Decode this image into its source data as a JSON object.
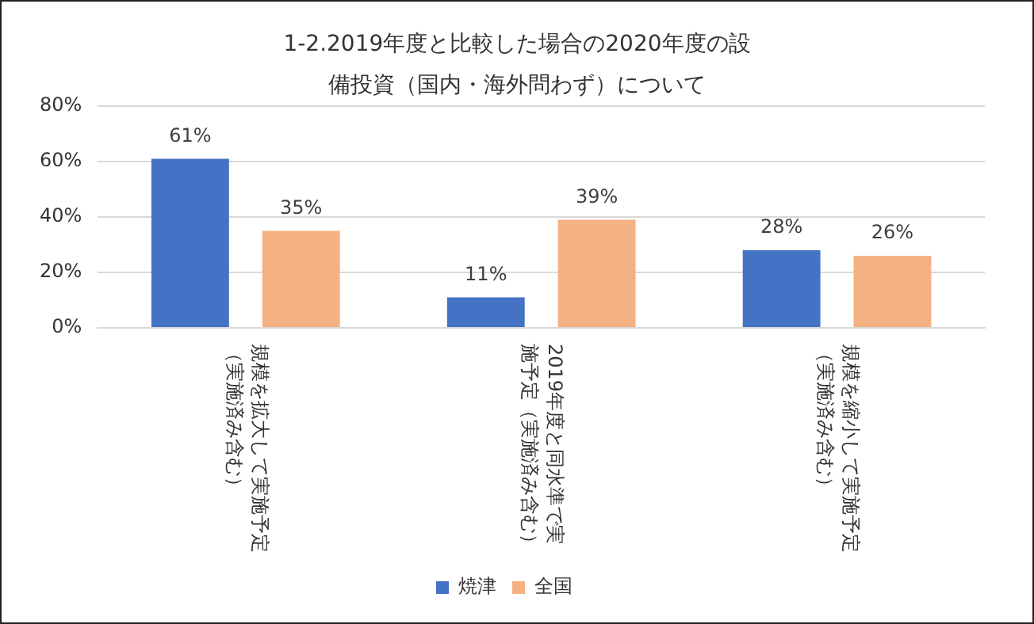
{
  "chart_data": {
    "type": "bar",
    "title": "1-2.2019年度と比較した場合の2020年度の設備投資（国内・海外問わず）について",
    "categories": [
      "規模を拡大して実施予定（実施済み含む）",
      "2019年度と同水準で実施予定（実施済み含む）",
      "規模を縮小して実施予定（実施済み含む）"
    ],
    "series": [
      {
        "name": "焼津",
        "color": "#4472c4",
        "values": [
          61,
          11,
          28
        ],
        "value_labels": [
          "61%",
          "11%",
          "28%"
        ]
      },
      {
        "name": "全国",
        "color": "#f4b183",
        "values": [
          35,
          39,
          26
        ],
        "value_labels": [
          "35%",
          "39%",
          "26%"
        ]
      }
    ],
    "ylim": [
      0,
      80
    ],
    "yticks": [
      {
        "value": 0,
        "label": "0%"
      },
      {
        "value": 20,
        "label": "20%"
      },
      {
        "value": 40,
        "label": "40%"
      },
      {
        "value": 60,
        "label": "60%"
      },
      {
        "value": 80,
        "label": "80%"
      }
    ],
    "grid": "y",
    "legend": "bottom"
  }
}
